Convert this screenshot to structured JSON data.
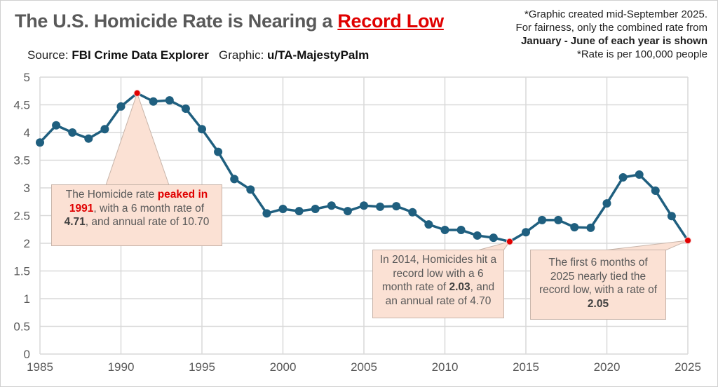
{
  "header": {
    "title_prefix": "The U.S. Homicide Rate is Nearing a ",
    "title_highlight": "Record Low",
    "source_label": "Source: ",
    "source_value": "FBI Crime Data Explorer",
    "graphic_label": "Graphic: ",
    "graphic_value": "u/TA-MajestyPalm"
  },
  "notes": {
    "line1": "*Graphic created mid-September 2025.",
    "line2": "For fairness, only the combined rate from",
    "line3": "January - June of each year is shown",
    "line4": "*Rate is per 100,000 people"
  },
  "callouts": {
    "peak": {
      "t1": "The Homicide rate ",
      "t2": "peaked in 1991",
      "t3": ", with a 6 month rate of ",
      "t4": "4.71",
      "t5": ", and annual rate of 10.70"
    },
    "low2014": {
      "t1": "In 2014, Homicides hit a record low with a 6 month rate of ",
      "t2": "2.03",
      "t3": ", and an annual rate of 4.70"
    },
    "y2025": {
      "t1": "The first 6 months of 2025 nearly tied the record low, with a rate of ",
      "t2": "2.05"
    }
  },
  "chart_data": {
    "type": "line",
    "title": "The U.S. Homicide Rate is Nearing a Record Low",
    "xlim": [
      1985,
      2025
    ],
    "ylim": [
      0,
      5
    ],
    "grid": true,
    "x_ticks": [
      1985,
      1990,
      1995,
      2000,
      2005,
      2010,
      2015,
      2020,
      2025
    ],
    "y_ticks": [
      0,
      0.5,
      1,
      1.5,
      2,
      2.5,
      3,
      3.5,
      4,
      4.5,
      5
    ],
    "line_color": "#1f5f7f",
    "highlight_color": "#e00000",
    "highlighted_points": [
      1991,
      2014,
      2025
    ],
    "x": [
      1985,
      1986,
      1987,
      1988,
      1989,
      1990,
      1991,
      1992,
      1993,
      1994,
      1995,
      1996,
      1997,
      1998,
      1999,
      2000,
      2001,
      2002,
      2003,
      2004,
      2005,
      2006,
      2007,
      2008,
      2009,
      2010,
      2011,
      2012,
      2013,
      2014,
      2015,
      2016,
      2017,
      2018,
      2019,
      2020,
      2021,
      2022,
      2023,
      2024,
      2025
    ],
    "y": [
      3.82,
      4.13,
      4.0,
      3.89,
      4.06,
      4.47,
      4.71,
      4.56,
      4.58,
      4.43,
      4.06,
      3.65,
      3.16,
      2.97,
      2.54,
      2.62,
      2.58,
      2.62,
      2.68,
      2.58,
      2.68,
      2.66,
      2.67,
      2.56,
      2.34,
      2.24,
      2.24,
      2.14,
      2.1,
      2.03,
      2.2,
      2.42,
      2.42,
      2.29,
      2.28,
      2.72,
      3.19,
      3.24,
      2.95,
      2.49,
      2.05
    ]
  }
}
